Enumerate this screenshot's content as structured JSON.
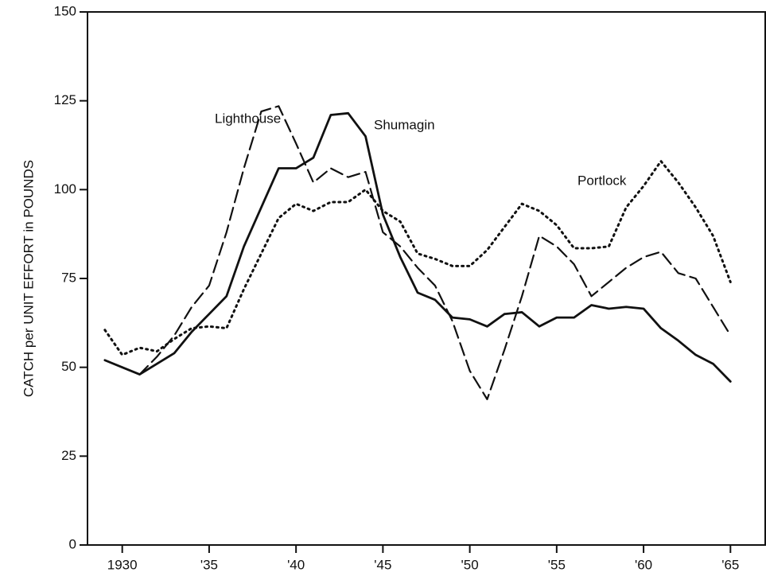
{
  "chart_data": {
    "type": "line",
    "y_label": "CATCH per UNIT EFFORT in POUNDS",
    "x": [
      1929,
      1930,
      1931,
      1932,
      1933,
      1934,
      1935,
      1936,
      1937,
      1938,
      1939,
      1940,
      1941,
      1942,
      1943,
      1944,
      1945,
      1946,
      1947,
      1948,
      1949,
      1950,
      1951,
      1952,
      1953,
      1954,
      1955,
      1956,
      1957,
      1958,
      1959,
      1960,
      1961,
      1962,
      1963,
      1964,
      1965
    ],
    "series": [
      {
        "name": "Lighthouse",
        "color": "#111",
        "dash": "dashed",
        "values": [
          52,
          50,
          48,
          53,
          59,
          67,
          73,
          88,
          106,
          122,
          123.5,
          113,
          102,
          106,
          103.5,
          105,
          88,
          84,
          78,
          73,
          63,
          49,
          41,
          55,
          70,
          87,
          84,
          79,
          70,
          74,
          78,
          81,
          82.5,
          76.5,
          75,
          67,
          59
        ]
      },
      {
        "name": "Shumagin",
        "color": "#111",
        "dash": "solid",
        "values": [
          52,
          50,
          48,
          51,
          54,
          60,
          65,
          70,
          84,
          95,
          106,
          106,
          109,
          121,
          121.5,
          115,
          93,
          81,
          71,
          69,
          64,
          63.5,
          61.5,
          65,
          65.5,
          61.5,
          64,
          64,
          67.5,
          66.5,
          67,
          66.5,
          61,
          57.5,
          53.5,
          51,
          46
        ]
      },
      {
        "name": "Portlock",
        "color": "#111",
        "dash": "dotted",
        "values": [
          60.5,
          53.5,
          55.5,
          54.5,
          58,
          61,
          61.5,
          61,
          72,
          82,
          92,
          96,
          94,
          96.5,
          96.5,
          100,
          94,
          91,
          82,
          80.5,
          78.5,
          78.5,
          83,
          89.5,
          96,
          94,
          90,
          83.5,
          83.5,
          84,
          95,
          101,
          108,
          102,
          95,
          87,
          74
        ]
      }
    ],
    "xlim": [
      1928,
      1967
    ],
    "xticks": [
      1930,
      {
        "value": 1935,
        "label": "'35"
      },
      {
        "value": 1940,
        "label": "'40"
      },
      {
        "value": 1945,
        "label": "'45"
      },
      {
        "value": 1950,
        "label": "'50"
      },
      {
        "value": 1955,
        "label": "'55"
      },
      {
        "value": 1960,
        "label": "'60"
      },
      {
        "value": 1965,
        "label": "'65"
      }
    ],
    "ylim": [
      0,
      150
    ],
    "yticks": [
      0,
      25,
      50,
      75,
      100,
      125,
      150
    ]
  }
}
